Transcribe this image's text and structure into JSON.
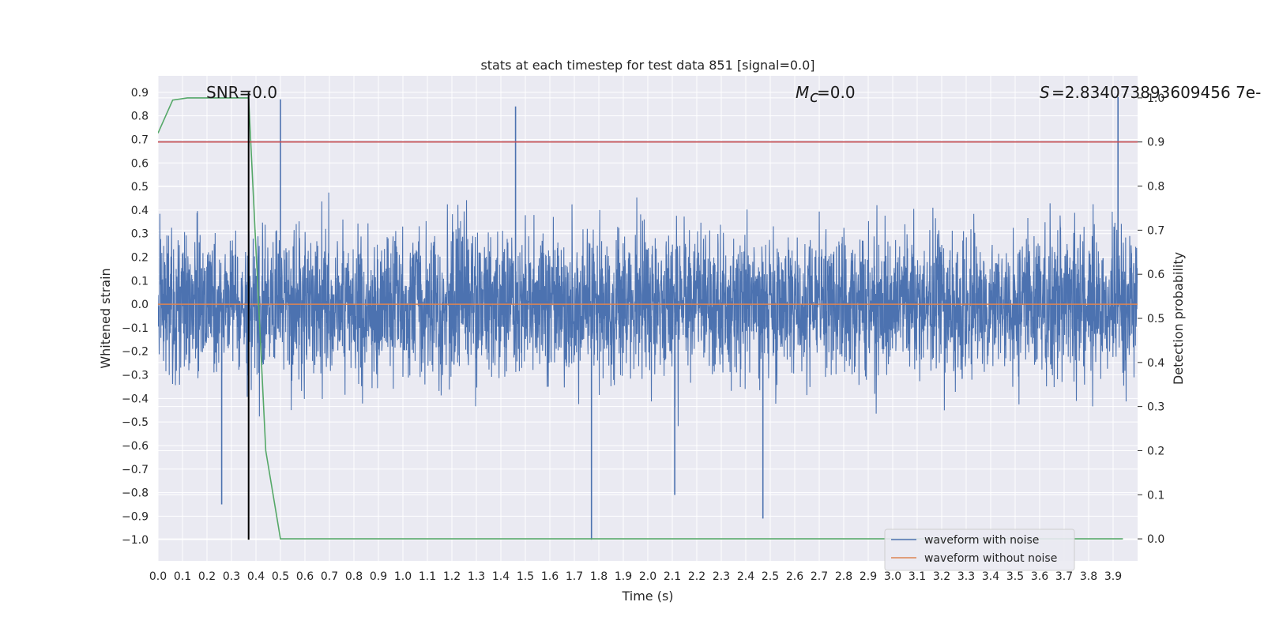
{
  "chart_data": {
    "type": "line",
    "title": "stats at each timestep for test data 851 [signal=0.0]",
    "xlabel": "Time (s)",
    "ylabel": "Whitened strain",
    "ylabel_right": "Detection probability",
    "xlim": [
      0.0,
      4.0
    ],
    "ylim": [
      -1.09,
      0.97
    ],
    "ylim_right": [
      -0.05,
      1.05
    ],
    "x_ticks": [
      "0.0",
      "0.1",
      "0.2",
      "0.3",
      "0.4",
      "0.5",
      "0.6",
      "0.7",
      "0.8",
      "0.9",
      "1.0",
      "1.1",
      "1.2",
      "1.3",
      "1.4",
      "1.5",
      "1.6",
      "1.7",
      "1.8",
      "1.9",
      "2.0",
      "2.1",
      "2.2",
      "2.3",
      "2.4",
      "2.5",
      "2.6",
      "2.7",
      "2.8",
      "2.9",
      "3.0",
      "3.1",
      "3.2",
      "3.3",
      "3.4",
      "3.5",
      "3.6",
      "3.7",
      "3.8",
      "3.9"
    ],
    "y_ticks": [
      "0.9",
      "0.8",
      "0.7",
      "0.6",
      "0.5",
      "0.4",
      "0.3",
      "0.2",
      "0.1",
      "0.0",
      "−0.1",
      "−0.2",
      "−0.3",
      "−0.4",
      "−0.5",
      "−0.6",
      "−0.7",
      "−0.8",
      "−0.9",
      "−1.0"
    ],
    "y_ticks_right": [
      "1.0",
      "0.9",
      "0.8",
      "0.7",
      "0.6",
      "0.5",
      "0.4",
      "0.3",
      "0.2",
      "0.1",
      "0.0"
    ],
    "annotations": {
      "snr": "SNR=0.0",
      "mc": "=0.0",
      "mc_symbol": "M",
      "mc_sub": "c",
      "s": "=2.834073893609456 7e-",
      "s_symbol": "S"
    },
    "series": [
      {
        "name": "waveform with noise",
        "color": "#4c72b0",
        "note": "dense noise signal",
        "x_range": [
          0.0,
          4.0
        ],
        "envelope": [
          -0.7,
          0.6
        ],
        "spikes": [
          [
            0.5,
            0.87
          ],
          [
            1.46,
            0.84
          ],
          [
            1.77,
            -1.0
          ],
          [
            2.47,
            -0.91
          ],
          [
            3.92,
            0.88
          ],
          [
            0.26,
            -0.85
          ],
          [
            2.11,
            -0.81
          ]
        ]
      },
      {
        "name": "waveform without noise",
        "color": "#dd8452",
        "x": [
          0.0,
          4.0
        ],
        "y": [
          0.0,
          0.0
        ]
      },
      {
        "name": "detection probability",
        "axis": "right",
        "color": "#55a868",
        "x": [
          0.0,
          0.06,
          0.12,
          0.19,
          0.25,
          0.31,
          0.37,
          0.44,
          0.5,
          0.56,
          3.94
        ],
        "y": [
          0.92,
          0.995,
          1.0,
          1.0,
          1.0,
          1.0,
          1.0,
          0.2,
          0.0,
          0.0,
          0.0
        ]
      },
      {
        "name": "threshold",
        "axis": "right",
        "color": "#c44e52",
        "x": [
          0.0,
          4.0
        ],
        "y": [
          0.9,
          0.9
        ]
      },
      {
        "name": "detection time",
        "color": "#000000",
        "x": [
          0.37,
          0.37
        ],
        "y": [
          -1.0,
          0.9
        ]
      }
    ],
    "legend": {
      "placement": "lower-right",
      "entries": [
        "waveform with noise",
        "waveform without noise"
      ]
    },
    "grid": true
  }
}
